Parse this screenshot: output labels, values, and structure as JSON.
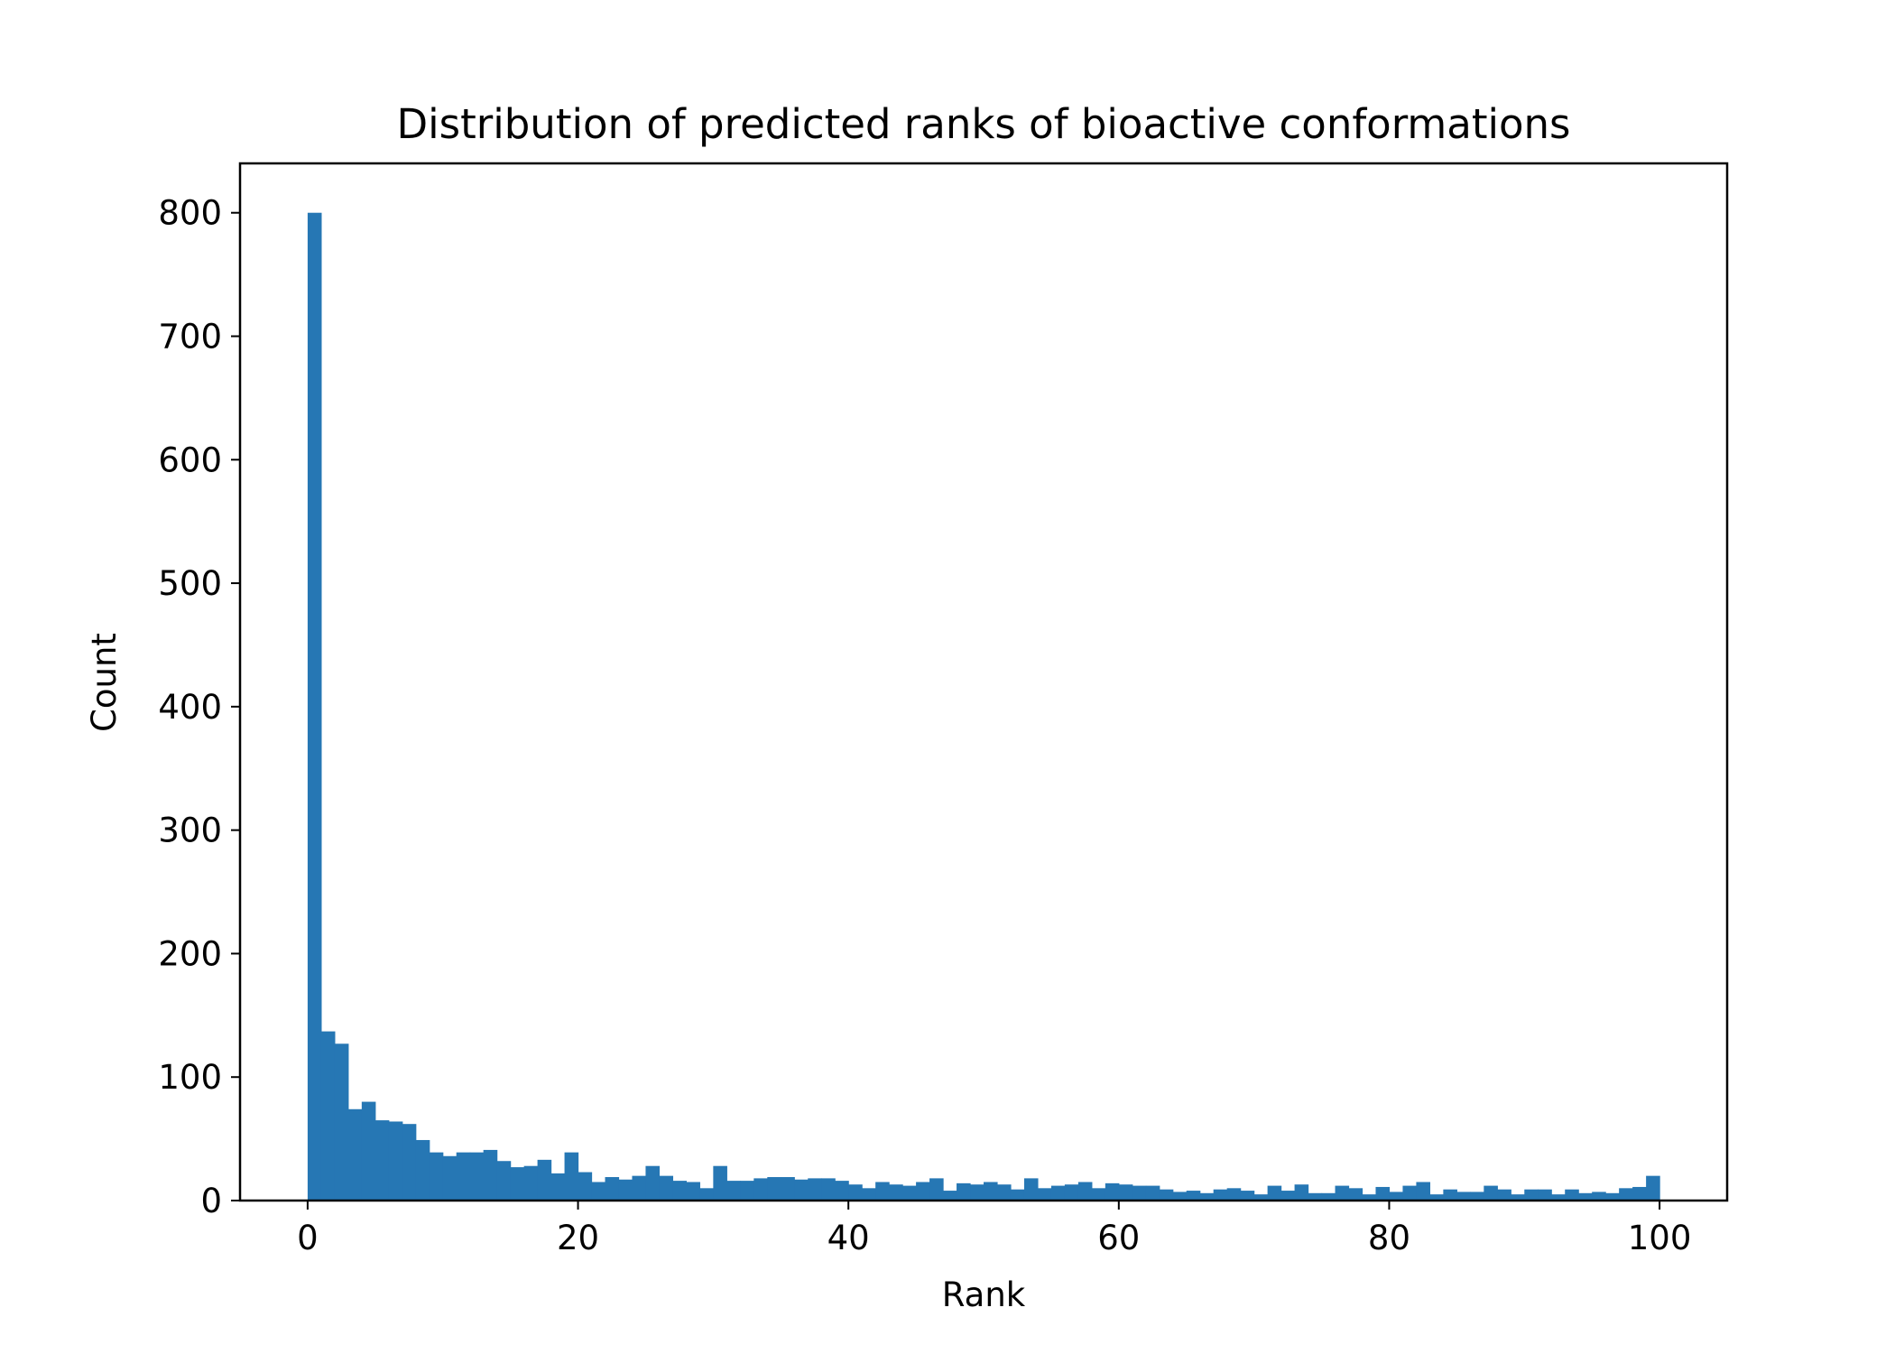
{
  "chart_data": {
    "type": "bar",
    "title": "Distribution of predicted ranks of bioactive conformations",
    "xlabel": "Rank",
    "ylabel": "Count",
    "xlim": [
      -5,
      105
    ],
    "ylim": [
      0,
      840
    ],
    "bin_start": 0,
    "bin_width": 1,
    "xticks": [
      0,
      20,
      40,
      60,
      80,
      100
    ],
    "yticks": [
      0,
      100,
      200,
      300,
      400,
      500,
      600,
      700,
      800
    ],
    "grid": false,
    "legend": "none",
    "bar_color": "#2677b4",
    "values": [
      800,
      137,
      127,
      74,
      80,
      65,
      64,
      62,
      49,
      39,
      36,
      39,
      39,
      41,
      32,
      27,
      28,
      33,
      22,
      39,
      23,
      15,
      19,
      17,
      20,
      28,
      20,
      16,
      15,
      10,
      28,
      16,
      16,
      18,
      19,
      19,
      17,
      18,
      18,
      16,
      13,
      10,
      15,
      13,
      12,
      15,
      18,
      8,
      14,
      13,
      15,
      13,
      9,
      18,
      10,
      12,
      13,
      15,
      10,
      14,
      13,
      12,
      12,
      9,
      7,
      8,
      6,
      9,
      10,
      8,
      5,
      12,
      8,
      13,
      6,
      6,
      12,
      10,
      5,
      11,
      7,
      12,
      15,
      5,
      9,
      7,
      7,
      12,
      9,
      5,
      9,
      9,
      5,
      9,
      6,
      7,
      6,
      10,
      11,
      20
    ]
  }
}
